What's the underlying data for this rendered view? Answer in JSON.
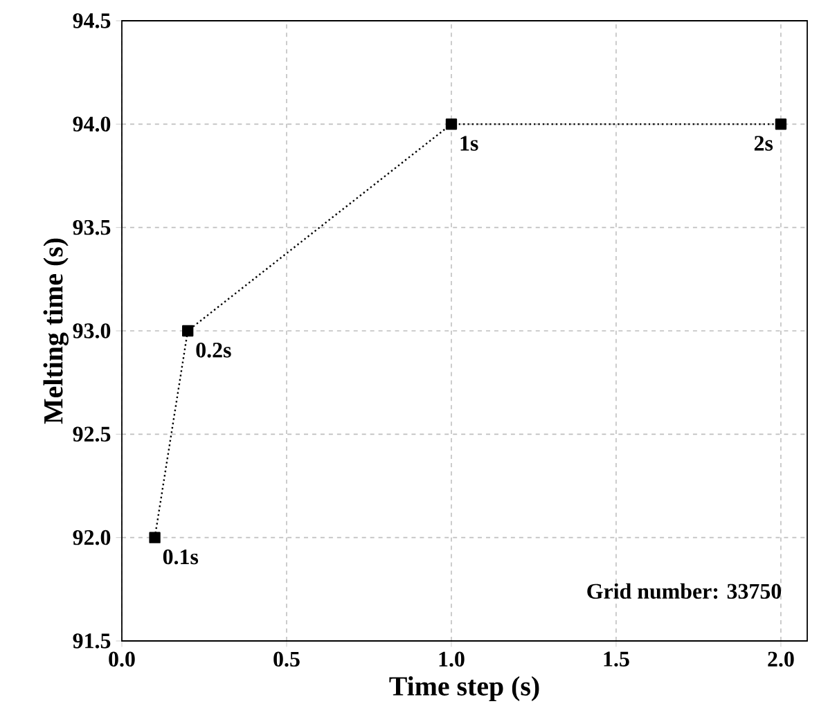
{
  "chart_data": {
    "type": "line",
    "xlabel": "Time step (s)",
    "ylabel": "Melting time (s)",
    "x": [
      0.1,
      0.2,
      1,
      2
    ],
    "series": [
      {
        "color": "#000000",
        "values": [
          92,
          93,
          94,
          94
        ]
      }
    ],
    "xlim": [
      0,
      2.08
    ],
    "ylim": [
      91.5,
      94.5
    ],
    "xticks": [
      {
        "value": 0,
        "label": "0.0"
      },
      {
        "value": 0.5,
        "label": "0.5"
      },
      {
        "value": 1,
        "label": "1.0"
      },
      {
        "value": 1.5,
        "label": "1.5"
      },
      {
        "value": 2,
        "label": "2.0"
      }
    ],
    "yticks": [
      {
        "value": 91.5,
        "label": "91.5"
      },
      {
        "value": 92,
        "label": "92.0"
      },
      {
        "value": 92.5,
        "label": "92.5"
      },
      {
        "value": 93,
        "label": "93.0"
      },
      {
        "value": 93.5,
        "label": "93.5"
      },
      {
        "value": 94,
        "label": "94.0"
      },
      {
        "value": 94.5,
        "label": "94.5"
      }
    ],
    "grid": true,
    "marker": "square",
    "line_style": "dotted",
    "annotations": [
      {
        "text": "0.1s",
        "x": 0.1,
        "y": 92
      },
      {
        "text": "0.2s",
        "x": 0.2,
        "y": 93
      },
      {
        "text": "1s",
        "x": 1,
        "y": 94
      },
      {
        "text": "2s",
        "x": 2,
        "y": 94
      },
      "Grid number: 33750"
    ]
  }
}
